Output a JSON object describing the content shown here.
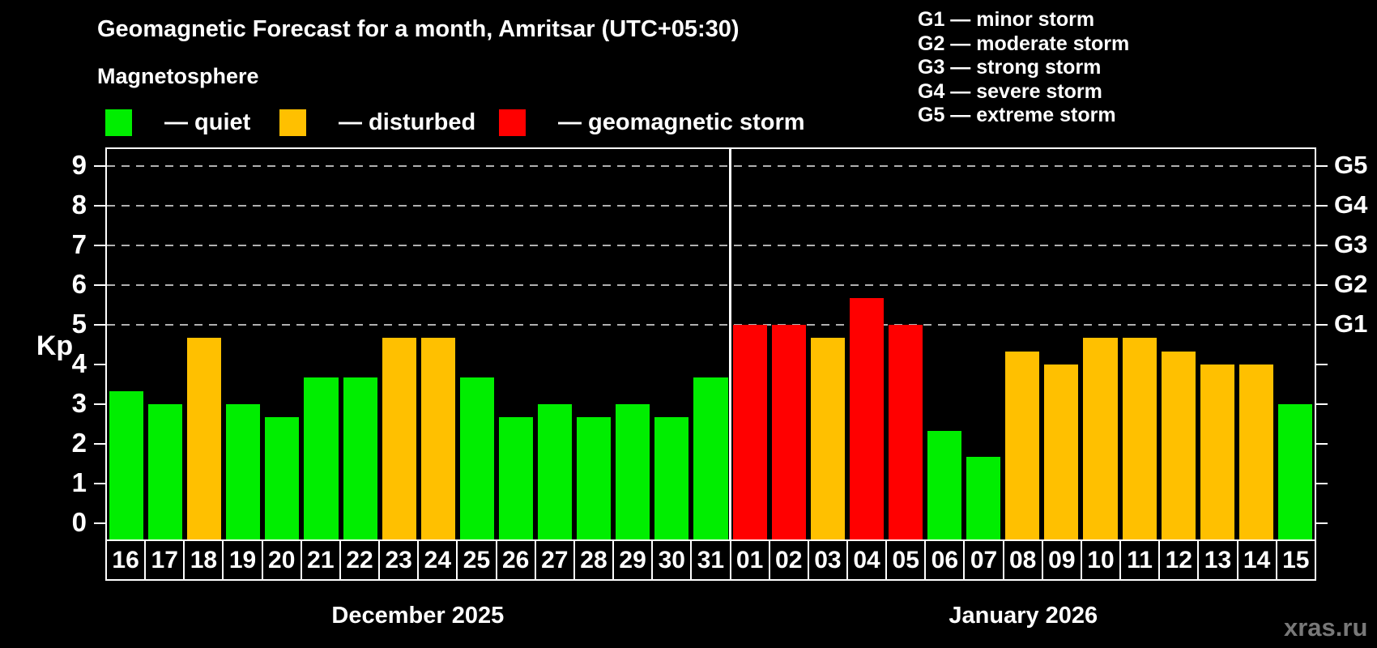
{
  "title": "Geomagnetic Forecast for a month, Amritsar (UTC+05:30)",
  "subtitle": "Magnetosphere",
  "legend": [
    {
      "key": "quiet",
      "label": "— quiet",
      "color": "#00ee00"
    },
    {
      "key": "disturbed",
      "label": "— disturbed",
      "color": "#ffc000"
    },
    {
      "key": "storm",
      "label": "— geomagnetic storm",
      "color": "#ff0000"
    }
  ],
  "g_legend": [
    "G1 — minor storm",
    "G2 — moderate storm",
    "G3 — strong storm",
    "G4 — severe storm",
    "G5 — extreme storm"
  ],
  "watermark": "xras.ru",
  "chart_data": {
    "type": "bar",
    "title": "Geomagnetic Forecast for a month, Amritsar (UTC+05:30)",
    "xlabel": "",
    "ylabel": "Kp",
    "ylim": [
      0,
      9
    ],
    "yticks": [
      0,
      1,
      2,
      3,
      4,
      5,
      6,
      7,
      8,
      9
    ],
    "gridlines_at": [
      5,
      6,
      7,
      8,
      9
    ],
    "grid": true,
    "legend_position": "top-left",
    "right_axis_labels": [
      {
        "label": "G1",
        "value": 5
      },
      {
        "label": "G2",
        "value": 6
      },
      {
        "label": "G3",
        "value": 7
      },
      {
        "label": "G4",
        "value": 8
      },
      {
        "label": "G5",
        "value": 9
      }
    ],
    "months": [
      {
        "label": "December 2025",
        "days": 16
      },
      {
        "label": "January 2026",
        "days": 15
      }
    ],
    "categories": [
      "16",
      "17",
      "18",
      "19",
      "20",
      "21",
      "22",
      "23",
      "24",
      "25",
      "26",
      "27",
      "28",
      "29",
      "30",
      "31",
      "01",
      "02",
      "03",
      "04",
      "05",
      "06",
      "07",
      "08",
      "09",
      "10",
      "11",
      "12",
      "13",
      "14",
      "15"
    ],
    "values": [
      3.33,
      3.0,
      4.67,
      3.0,
      2.67,
      3.67,
      3.67,
      4.67,
      4.67,
      3.67,
      2.67,
      3.0,
      2.67,
      3.0,
      2.67,
      3.67,
      5.0,
      5.0,
      4.67,
      5.67,
      5.0,
      2.33,
      1.67,
      4.33,
      4.0,
      4.67,
      4.67,
      4.33,
      4.0,
      4.0,
      3.0
    ],
    "statuses": [
      "quiet",
      "quiet",
      "disturbed",
      "quiet",
      "quiet",
      "quiet",
      "quiet",
      "disturbed",
      "disturbed",
      "quiet",
      "quiet",
      "quiet",
      "quiet",
      "quiet",
      "quiet",
      "quiet",
      "storm",
      "storm",
      "disturbed",
      "storm",
      "storm",
      "quiet",
      "quiet",
      "disturbed",
      "disturbed",
      "disturbed",
      "disturbed",
      "disturbed",
      "disturbed",
      "disturbed",
      "quiet"
    ],
    "status_colors": {
      "quiet": "#00ee00",
      "disturbed": "#ffc000",
      "storm": "#ff0000"
    }
  }
}
